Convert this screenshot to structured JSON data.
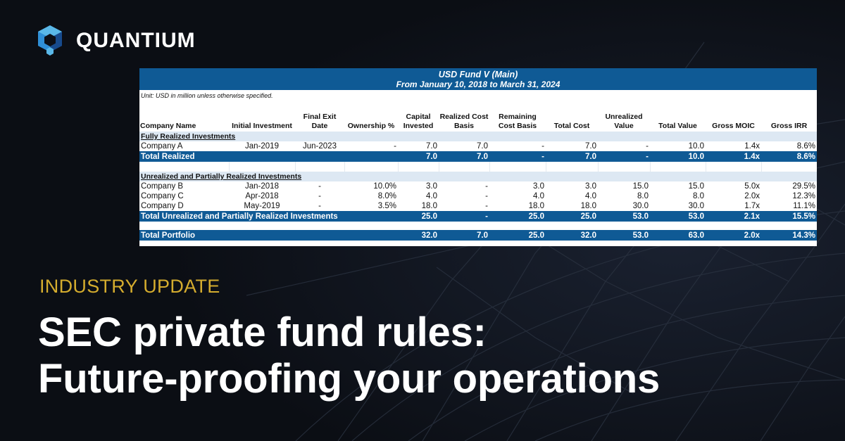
{
  "brand": {
    "name": "QUANTIUM"
  },
  "table": {
    "title": "USD Fund V (Main)",
    "subtitle": "From January 10, 2018 to March 31, 2024",
    "unit_note": "Unit: USD in million unless otherwise specified.",
    "columns": [
      "Company Name",
      "Initial Investment",
      "Final Exit Date",
      "Ownership %",
      "Capital Invested",
      "Realized Cost Basis",
      "Remaining Cost Basis",
      "Total Cost",
      "Unrealized Value",
      "Total Value",
      "Gross MOIC",
      "Gross IRR"
    ],
    "section_realized": "Fully Realized Investments",
    "realized_rows": [
      [
        "Company A",
        "Jan-2019",
        "Jun-2023",
        "-",
        "7.0",
        "7.0",
        "-",
        "7.0",
        "-",
        "10.0",
        "1.4x",
        "8.6%"
      ]
    ],
    "total_realized": [
      "Total Realized",
      "",
      "",
      "",
      "7.0",
      "7.0",
      "-",
      "7.0",
      "-",
      "10.0",
      "1.4x",
      "8.6%"
    ],
    "section_unrealized": "Unrealized and Partially Realized Investments",
    "unrealized_rows": [
      [
        "Company B",
        "Jan-2018",
        "-",
        "10.0%",
        "3.0",
        "-",
        "3.0",
        "3.0",
        "15.0",
        "15.0",
        "5.0x",
        "29.5%"
      ],
      [
        "Company C",
        "Apr-2018",
        "-",
        "8.0%",
        "4.0",
        "-",
        "4.0",
        "4.0",
        "8.0",
        "8.0",
        "2.0x",
        "12.3%"
      ],
      [
        "Company D",
        "May-2019",
        "-",
        "3.5%",
        "18.0",
        "-",
        "18.0",
        "18.0",
        "30.0",
        "30.0",
        "1.7x",
        "11.1%"
      ]
    ],
    "total_unrealized": [
      "Total Unrealized and Partially Realized Investments",
      "",
      "",
      "",
      "25.0",
      "-",
      "25.0",
      "25.0",
      "53.0",
      "53.0",
      "2.1x",
      "15.5%"
    ],
    "total_portfolio": [
      "Total Portfolio",
      "",
      "",
      "",
      "32.0",
      "7.0",
      "25.0",
      "32.0",
      "53.0",
      "63.0",
      "2.0x",
      "14.3%"
    ]
  },
  "kicker": "INDUSTRY UPDATE",
  "headline": {
    "line1": "SEC private fund rules:",
    "line2": "Future-proofing your operations"
  },
  "colors": {
    "background": "#0c0f16",
    "table_header": "#0f5a95",
    "section_fill": "#dde8f3",
    "kicker": "#d4ac2e",
    "logo_light": "#5ab8e8",
    "logo_dark": "#1e62b0"
  },
  "icons": {
    "logo": "hexagon-cube-logo-icon"
  }
}
